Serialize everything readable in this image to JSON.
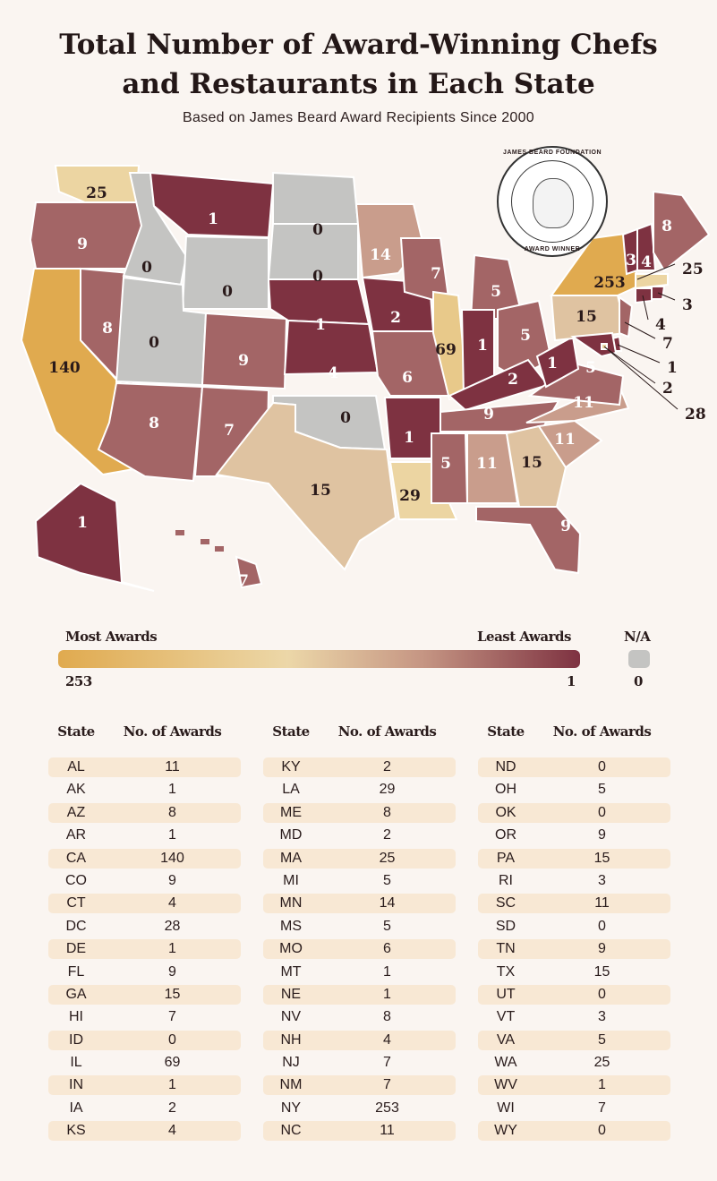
{
  "title_line1": "Total Number of Award-Winning Chefs",
  "title_line2": "and Restaurants in Each State",
  "subtitle": "Based on James Beard Award Recipients Since 2000",
  "badge": {
    "top": "JAMES BEARD FOUNDATION",
    "bottom": "AWARD WINNER"
  },
  "legend": {
    "most": "Most Awards",
    "least": "Least Awards",
    "na": "N/A",
    "max": "253",
    "min": "1",
    "na_value": "0"
  },
  "colors": {
    "background": "#faf5f1",
    "most": "#e0aa4f",
    "mid": "#ecd7a8",
    "least": "#7e3241",
    "na": "#c4c4c2",
    "row": "#f8e8d4"
  },
  "table_header": {
    "state": "State",
    "awards": "No. of Awards"
  },
  "chart_data": {
    "type": "choropleth",
    "title": "Total Number of Award-Winning Chefs and Restaurants in Each State",
    "columns": [
      [
        [
          "AL",
          "11"
        ],
        [
          "AK",
          "1"
        ],
        [
          "AZ",
          "8"
        ],
        [
          "AR",
          "1"
        ],
        [
          "CA",
          "140"
        ],
        [
          "CO",
          "9"
        ],
        [
          "CT",
          "4"
        ],
        [
          "DC",
          "28"
        ],
        [
          "DE",
          "1"
        ],
        [
          "FL",
          "9"
        ],
        [
          "GA",
          "15"
        ],
        [
          "HI",
          "7"
        ],
        [
          "ID",
          "0"
        ],
        [
          "IL",
          "69"
        ],
        [
          "IN",
          "1"
        ],
        [
          "IA",
          "2"
        ],
        [
          "KS",
          "4"
        ]
      ],
      [
        [
          "KY",
          "2"
        ],
        [
          "LA",
          "29"
        ],
        [
          "ME",
          "8"
        ],
        [
          "MD",
          "2"
        ],
        [
          "MA",
          "25"
        ],
        [
          "MI",
          "5"
        ],
        [
          "MN",
          "14"
        ],
        [
          "MS",
          "5"
        ],
        [
          "MO",
          "6"
        ],
        [
          "MT",
          "1"
        ],
        [
          "NE",
          "1"
        ],
        [
          "NV",
          "8"
        ],
        [
          "NH",
          "4"
        ],
        [
          "NJ",
          "7"
        ],
        [
          "NM",
          "7"
        ],
        [
          "NY",
          "253"
        ],
        [
          "NC",
          "11"
        ]
      ],
      [
        [
          "ND",
          "0"
        ],
        [
          "OH",
          "5"
        ],
        [
          "OK",
          "0"
        ],
        [
          "OR",
          "9"
        ],
        [
          "PA",
          "15"
        ],
        [
          "RI",
          "3"
        ],
        [
          "SC",
          "11"
        ],
        [
          "SD",
          "0"
        ],
        [
          "TN",
          "9"
        ],
        [
          "TX",
          "15"
        ],
        [
          "UT",
          "0"
        ],
        [
          "VT",
          "3"
        ],
        [
          "VA",
          "5"
        ],
        [
          "WA",
          "25"
        ],
        [
          "WV",
          "1"
        ],
        [
          "WI",
          "7"
        ],
        [
          "WY",
          "0"
        ]
      ]
    ]
  }
}
